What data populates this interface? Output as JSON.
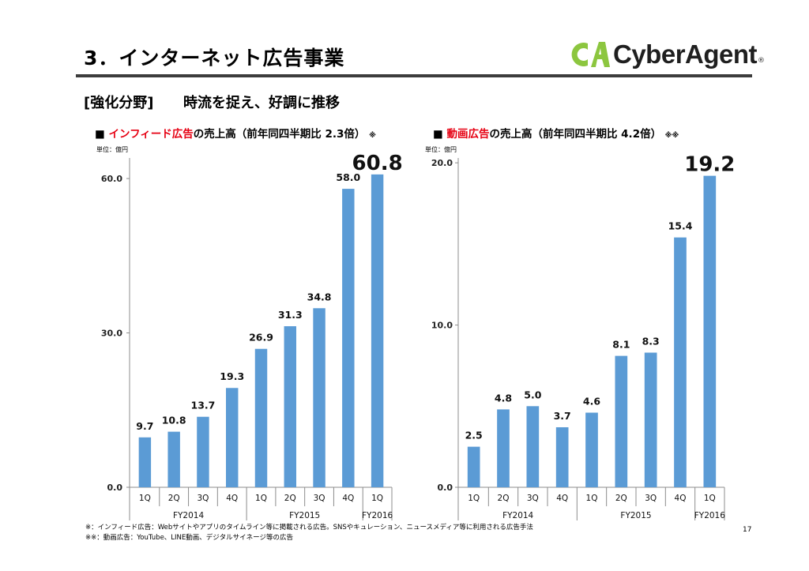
{
  "header": {
    "title": "3．インターネット広告事業",
    "logo_text": "CyberAgent",
    "logo_reg": "®"
  },
  "section": {
    "tag": "[強化分野]",
    "subtitle": "時流を捉え、好調に推移"
  },
  "colors": {
    "bar": "#5b9bd5",
    "accent_red": "#e60012",
    "logo_green": "#8cc63f",
    "rule": "#3c3c3c"
  },
  "charts": {
    "infeed": {
      "bullet": "■",
      "title_red": "インフィード広告",
      "title_rest": "の売上高（前年同四半期比 2.3倍）",
      "mark": "※",
      "unit": "単位：億円"
    },
    "video": {
      "bullet": "■",
      "title_red": "動画広告",
      "title_rest": "の売上高（前年同四半期比 4.2倍）",
      "mark": "※※",
      "unit": "単位：億円"
    }
  },
  "chart_data": [
    {
      "type": "bar",
      "title": "インフィード広告の売上高（前年同四半期比 2.3倍）",
      "ylabel": "単位：億円",
      "categories": [
        "1Q",
        "2Q",
        "3Q",
        "4Q",
        "1Q",
        "2Q",
        "3Q",
        "4Q",
        "1Q"
      ],
      "groups": [
        {
          "label": "FY2014",
          "count": 4
        },
        {
          "label": "FY2015",
          "count": 4
        },
        {
          "label": "FY2016",
          "count": 1
        }
      ],
      "values": [
        9.7,
        10.8,
        13.7,
        19.3,
        26.9,
        31.3,
        34.8,
        58.0,
        60.8
      ],
      "value_labels": [
        "9.7",
        "10.8",
        "13.7",
        "19.3",
        "26.9",
        "31.3",
        "34.8",
        "58.0",
        "60.8"
      ],
      "highlight_last": true,
      "ylim": [
        0,
        64
      ],
      "yticks": [
        0,
        30,
        60
      ],
      "ytick_labels": [
        "0.0",
        "30.0",
        "60.0"
      ],
      "grid": false,
      "legend": "none"
    },
    {
      "type": "bar",
      "title": "動画広告の売上高（前年同四半期比 4.2倍）",
      "ylabel": "単位：億円",
      "categories": [
        "1Q",
        "2Q",
        "3Q",
        "4Q",
        "1Q",
        "2Q",
        "3Q",
        "4Q",
        "1Q"
      ],
      "groups": [
        {
          "label": "FY2014",
          "count": 4
        },
        {
          "label": "FY2015",
          "count": 4
        },
        {
          "label": "FY2016",
          "count": 1
        }
      ],
      "values": [
        2.5,
        4.8,
        5.0,
        3.7,
        4.6,
        8.1,
        8.3,
        15.4,
        19.2
      ],
      "value_labels": [
        "2.5",
        "4.8",
        "5.0",
        "3.7",
        "4.6",
        "8.1",
        "8.3",
        "15.4",
        "19.2"
      ],
      "highlight_last": true,
      "ylim": [
        0,
        20.3
      ],
      "yticks": [
        0,
        10,
        20
      ],
      "ytick_labels": [
        "0.0",
        "10.0",
        "20.0"
      ],
      "grid": false,
      "legend": "none"
    }
  ],
  "footnotes": [
    "※：インフィード広告：Webサイトやアプリのタイムライン等に掲載される広告。SNSやキュレーション、ニュースメディア等に利用される広告手法",
    "※※：動画広告：YouTube、LINE動画、デジタルサイネージ等の広告"
  ],
  "page_number": "17"
}
